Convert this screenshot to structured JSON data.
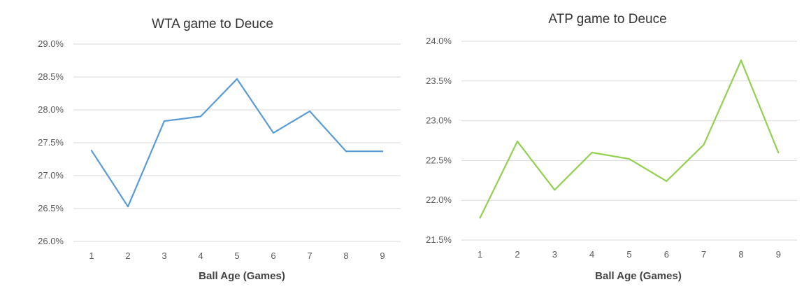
{
  "chart_data": [
    {
      "type": "line",
      "title": "WTA game to Deuce",
      "xlabel": "Ball Age (Games)",
      "ylabel": "",
      "categories": [
        "1",
        "2",
        "3",
        "4",
        "5",
        "6",
        "7",
        "8",
        "9"
      ],
      "y_tick_labels": [
        "26.0%",
        "26.5%",
        "27.0%",
        "27.5%",
        "28.0%",
        "28.5%",
        "29.0%"
      ],
      "ylim": [
        26.0,
        29.0
      ],
      "y_step": 0.5,
      "grid": true,
      "legend": "none",
      "series": [
        {
          "color": "#5b9bd5",
          "values": [
            27.38,
            26.53,
            27.83,
            27.9,
            28.47,
            27.65,
            27.98,
            27.37,
            27.37
          ]
        }
      ]
    },
    {
      "type": "line",
      "title": "ATP game to Deuce",
      "xlabel": "Ball Age (Games)",
      "ylabel": "",
      "categories": [
        "1",
        "2",
        "3",
        "4",
        "5",
        "6",
        "7",
        "8",
        "9"
      ],
      "y_tick_labels": [
        "21.5%",
        "22.0%",
        "22.5%",
        "23.0%",
        "23.5%",
        "24.0%"
      ],
      "ylim": [
        21.5,
        24.0
      ],
      "y_step": 0.5,
      "grid": true,
      "legend": "none",
      "series": [
        {
          "color": "#92d050",
          "values": [
            21.78,
            22.74,
            22.13,
            22.6,
            22.52,
            22.24,
            22.7,
            23.76,
            22.6
          ]
        }
      ]
    }
  ]
}
